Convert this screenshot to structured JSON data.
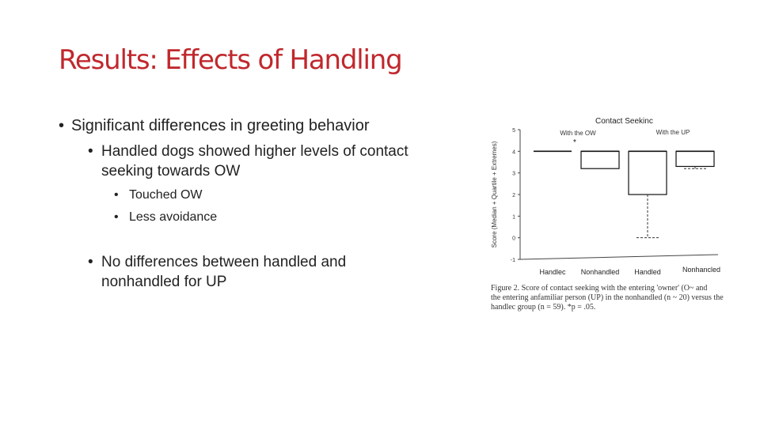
{
  "slide": {
    "title": "Results: Effects of Handling",
    "bullets": [
      {
        "level": 1,
        "text": "Significant differences in greeting behavior"
      },
      {
        "level": 2,
        "text": "Handled dogs showed higher levels of contact"
      },
      {
        "level": 2,
        "text": "seeking towards OW"
      },
      {
        "level": 3,
        "text": "Touched OW"
      },
      {
        "level": 3,
        "text": "Less avoidance"
      },
      {
        "level": 2,
        "text": "No differences between handled and"
      },
      {
        "level": 2,
        "text": "nonhandled for UP"
      }
    ],
    "bullet_glyph": "•"
  },
  "figure": {
    "caption_line1": "Figure 2.    Score of contact seeking with the entering 'owner' (O~ and",
    "caption_line2": "the entering anfamiliar person (UP) in the nonhandled (n ~ 20) versus the",
    "caption_line3": "handlec group (n = 59). *p = .05."
  },
  "chart_data": {
    "type": "box",
    "title": "Contact Seekinc",
    "ylabel": "Score (Median + Quartile + Extremes)",
    "ylim": [
      -1,
      5
    ],
    "yticks": [
      "-1",
      "0",
      "1",
      "2",
      "3",
      "4",
      "5"
    ],
    "group_labels": [
      "With the OW",
      "With the UP"
    ],
    "significance_marker": "*",
    "categories": [
      "Handlec",
      "Nonhandled",
      "Handled",
      "Nonhancled"
    ],
    "boxes": [
      {
        "group": "With the OW",
        "median": 4,
        "q1": 4,
        "q3": 4,
        "min": 4,
        "max": 4
      },
      {
        "group": "With the OW",
        "median": 4,
        "q1": 3.2,
        "q3": 4,
        "min": 3.2,
        "max": 4
      },
      {
        "group": "With the UP",
        "median": 4,
        "q1": 2,
        "q3": 4,
        "min": 0,
        "max": 4
      },
      {
        "group": "With the UP",
        "median": 4,
        "q1": 3.3,
        "q3": 4,
        "min": 3.2,
        "max": 4
      }
    ]
  }
}
